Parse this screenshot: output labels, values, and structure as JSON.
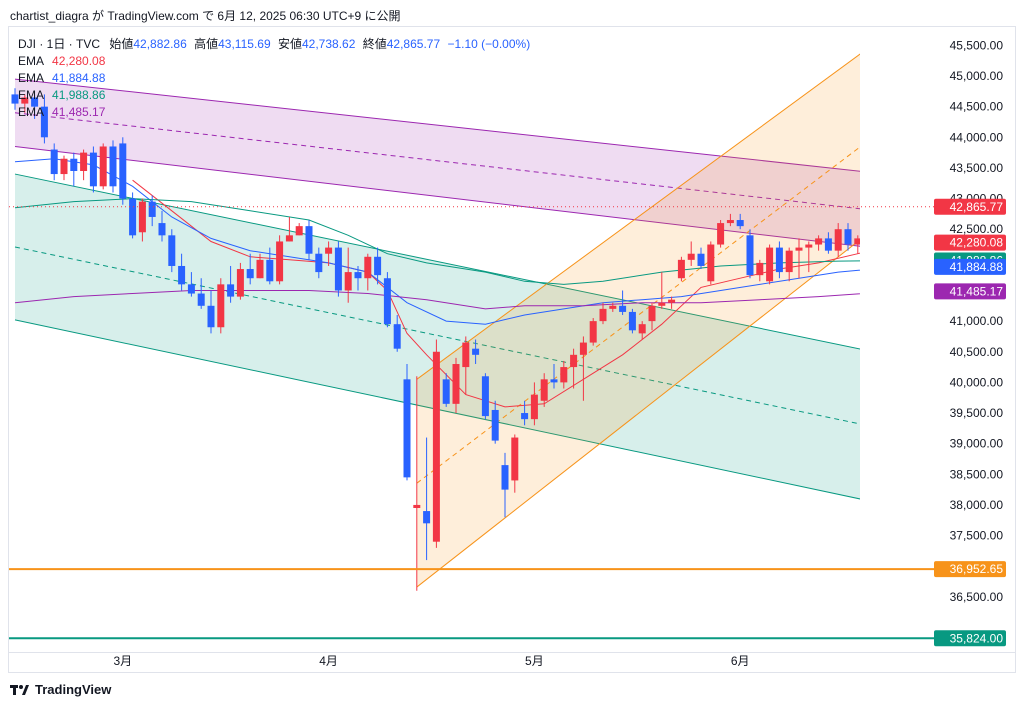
{
  "header": {
    "text": "chartist_diagra が TradingView.com で 6月 12, 2025 06:30 UTC+9 に公開"
  },
  "legend": {
    "symbol": "DJI · 1日 · TVC",
    "open_label": "始値",
    "open": "42,882.86",
    "high_label": "高値",
    "high": "43,115.69",
    "low_label": "安値",
    "low": "42,738.62",
    "close_label": "終値",
    "close": "42,865.77",
    "change": "−1.10 (−0.00%)",
    "emas": [
      {
        "name": "EMA",
        "value": "42,280.08",
        "color": "#f23645"
      },
      {
        "name": "EMA",
        "value": "41,884.88",
        "color": "#2962ff"
      },
      {
        "name": "EMA",
        "value": "41,988.86",
        "color": "#089981"
      },
      {
        "name": "EMA",
        "value": "41,485.17",
        "color": "#9c27b0"
      }
    ]
  },
  "footer": {
    "brand": "TradingView"
  },
  "chart_data": {
    "type": "candlestick",
    "symbol": "DJI",
    "interval": "1日",
    "y_axis": {
      "min": 35600,
      "max": 45800,
      "ticks": [
        36500,
        37000,
        37500,
        38000,
        38500,
        39000,
        39500,
        40000,
        40500,
        41000,
        41500,
        42000,
        42500,
        43000,
        43500,
        44000,
        44500,
        45000,
        45500
      ],
      "tick_labels": [
        "36,500.00",
        "37,000.00",
        "37,500.00",
        "38,000.00",
        "38,500.00",
        "39,000.00",
        "39,500.00",
        "40,000.00",
        "40,500.00",
        "41,000.00",
        "41,500.00",
        "42,000.00",
        "42,500.00",
        "43,000.00",
        "43,500.00",
        "44,000.00",
        "44,500.00",
        "45,000.00",
        "45,500.00"
      ]
    },
    "x_axis": {
      "labels": [
        {
          "text": "3月",
          "bar": 11
        },
        {
          "text": "4月",
          "bar": 32
        },
        {
          "text": "5月",
          "bar": 53
        },
        {
          "text": "6月",
          "bar": 74
        }
      ],
      "bar_count": 91
    },
    "price_tags": [
      {
        "value": 42865.77,
        "label": "42,865.77",
        "color": "#f23645",
        "line": "dotted"
      },
      {
        "value": 42280.08,
        "label": "42,280.08",
        "color": "#f23645"
      },
      {
        "value": 41988.86,
        "label": "41,988.86",
        "color": "#089981"
      },
      {
        "value": 41884.88,
        "label": "41,884.88",
        "color": "#2962ff"
      },
      {
        "value": 41485.17,
        "label": "41,485.17",
        "color": "#9c27b0"
      },
      {
        "value": 36952.65,
        "label": "36,952.65",
        "color": "#f7931a",
        "line": "solid"
      },
      {
        "value": 35824.0,
        "label": "35,824.00",
        "color": "#089981",
        "line": "solid"
      }
    ],
    "candles": [
      [
        44700,
        44800,
        44450,
        44550
      ],
      [
        44550,
        44700,
        44400,
        44650
      ],
      [
        44650,
        44700,
        44300,
        44500
      ],
      [
        44500,
        44700,
        43900,
        44000
      ],
      [
        43800,
        43900,
        43300,
        43400
      ],
      [
        43400,
        43700,
        43300,
        43650
      ],
      [
        43650,
        43750,
        43200,
        43450
      ],
      [
        43450,
        43800,
        43300,
        43750
      ],
      [
        43750,
        43850,
        43100,
        43200
      ],
      [
        43200,
        43900,
        43150,
        43850
      ],
      [
        43850,
        43950,
        43100,
        43200
      ],
      [
        43900,
        44000,
        42900,
        43000
      ],
      [
        43000,
        43100,
        42350,
        42400
      ],
      [
        42450,
        43000,
        42300,
        42950
      ],
      [
        42950,
        43050,
        42550,
        42700
      ],
      [
        42600,
        42800,
        42300,
        42400
      ],
      [
        42400,
        42500,
        41800,
        41900
      ],
      [
        41900,
        42100,
        41500,
        41600
      ],
      [
        41600,
        41800,
        41400,
        41450
      ],
      [
        41450,
        41700,
        41200,
        41250
      ],
      [
        41250,
        41500,
        40800,
        40900
      ],
      [
        40900,
        41700,
        40800,
        41600
      ],
      [
        41600,
        41900,
        41300,
        41400
      ],
      [
        41400,
        41950,
        41350,
        41850
      ],
      [
        41850,
        42100,
        41600,
        41700
      ],
      [
        41700,
        42100,
        41700,
        42000
      ],
      [
        42000,
        42200,
        41600,
        41650
      ],
      [
        41650,
        42400,
        41600,
        42300
      ],
      [
        42300,
        42700,
        42300,
        42400
      ],
      [
        42400,
        42600,
        42400,
        42550
      ],
      [
        42550,
        42650,
        42000,
        42100
      ],
      [
        42100,
        42200,
        41700,
        41800
      ],
      [
        42100,
        42300,
        41900,
        42200
      ],
      [
        42200,
        42300,
        41400,
        41500
      ],
      [
        41500,
        42200,
        41300,
        41800
      ],
      [
        41800,
        41900,
        41500,
        41700
      ],
      [
        41700,
        42100,
        41500,
        42050
      ],
      [
        42050,
        42200,
        41600,
        41750
      ],
      [
        41700,
        41800,
        40900,
        40950
      ],
      [
        40950,
        41100,
        40500,
        40550
      ],
      [
        40050,
        40300,
        38400,
        38450
      ],
      [
        37950,
        40100,
        36600,
        38000
      ],
      [
        37900,
        39100,
        37100,
        37700
      ],
      [
        37400,
        40700,
        37300,
        40500
      ],
      [
        40050,
        40150,
        39600,
        39650
      ],
      [
        39650,
        40400,
        39500,
        40300
      ],
      [
        40250,
        40750,
        39800,
        40650
      ],
      [
        40550,
        40700,
        40300,
        40450
      ],
      [
        40100,
        40150,
        39400,
        39450
      ],
      [
        39550,
        39700,
        39000,
        39050
      ],
      [
        38650,
        38850,
        37800,
        38250
      ],
      [
        38400,
        39150,
        38200,
        39100
      ],
      [
        39500,
        39700,
        39300,
        39400
      ],
      [
        39400,
        40000,
        39300,
        39800
      ],
      [
        39700,
        40150,
        39600,
        40050
      ],
      [
        40050,
        40300,
        39900,
        40000
      ],
      [
        40000,
        40350,
        39900,
        40250
      ],
      [
        40250,
        40550,
        39900,
        40450
      ],
      [
        40450,
        40750,
        39700,
        40650
      ],
      [
        40650,
        41050,
        40600,
        41000
      ],
      [
        41000,
        41300,
        40950,
        41200
      ],
      [
        41200,
        41300,
        41150,
        41250
      ],
      [
        41250,
        41500,
        41100,
        41150
      ],
      [
        41150,
        41200,
        40800,
        40850
      ],
      [
        40800,
        41000,
        40700,
        40950
      ],
      [
        41000,
        41300,
        40850,
        41250
      ],
      [
        41250,
        41800,
        41200,
        41300
      ],
      [
        41300,
        41400,
        41200,
        41350
      ],
      [
        41700,
        42050,
        41650,
        42000
      ],
      [
        42000,
        42300,
        41900,
        42100
      ],
      [
        42100,
        42200,
        41850,
        41900
      ],
      [
        41650,
        42300,
        41600,
        42250
      ],
      [
        42250,
        42650,
        42200,
        42600
      ],
      [
        42600,
        42750,
        42550,
        42650
      ],
      [
        42650,
        42750,
        42500,
        42550
      ],
      [
        42400,
        42500,
        41700,
        41750
      ],
      [
        41750,
        42000,
        41650,
        41950
      ],
      [
        41650,
        42250,
        41600,
        42200
      ],
      [
        42200,
        42300,
        41700,
        41800
      ],
      [
        41800,
        42200,
        41650,
        42150
      ],
      [
        42150,
        42350,
        41700,
        42200
      ],
      [
        42200,
        42300,
        41800,
        42250
      ],
      [
        42250,
        42400,
        42150,
        42350
      ],
      [
        42350,
        42450,
        42100,
        42150
      ],
      [
        42150,
        42600,
        42050,
        42500
      ],
      [
        42500,
        42600,
        42150,
        42250
      ],
      [
        42250,
        42400,
        42100,
        42350
      ],
      [
        42350,
        42700,
        42250,
        42650
      ],
      [
        42650,
        42950,
        42550,
        42750
      ],
      [
        42750,
        42900,
        42650,
        42800
      ],
      [
        42882.86,
        43115.69,
        42738.62,
        42865.77
      ]
    ],
    "ema_series": [
      {
        "name": "EMA",
        "color": "#f23645",
        "points": [
          [
            12,
            43300
          ],
          [
            16,
            42800
          ],
          [
            20,
            42300
          ],
          [
            24,
            42050
          ],
          [
            28,
            42000
          ],
          [
            32,
            41950
          ],
          [
            36,
            41800
          ],
          [
            38,
            41500
          ],
          [
            40,
            40800
          ],
          [
            42,
            40450
          ],
          [
            46,
            39800
          ],
          [
            50,
            39600
          ],
          [
            54,
            39650
          ],
          [
            58,
            40050
          ],
          [
            62,
            40450
          ],
          [
            66,
            40950
          ],
          [
            70,
            41550
          ],
          [
            74,
            41700
          ],
          [
            78,
            41850
          ],
          [
            82,
            41950
          ],
          [
            86,
            42100
          ],
          [
            90,
            42280
          ]
        ]
      },
      {
        "name": "EMA",
        "color": "#2962ff",
        "points": [
          [
            0,
            43600
          ],
          [
            4,
            43650
          ],
          [
            8,
            43550
          ],
          [
            12,
            43200
          ],
          [
            16,
            42700
          ],
          [
            20,
            42350
          ],
          [
            24,
            42150
          ],
          [
            28,
            42050
          ],
          [
            32,
            41950
          ],
          [
            36,
            41800
          ],
          [
            40,
            41300
          ],
          [
            44,
            41000
          ],
          [
            48,
            40950
          ],
          [
            52,
            41100
          ],
          [
            56,
            41200
          ],
          [
            60,
            41300
          ],
          [
            64,
            41350
          ],
          [
            68,
            41400
          ],
          [
            72,
            41500
          ],
          [
            76,
            41600
          ],
          [
            80,
            41700
          ],
          [
            84,
            41800
          ],
          [
            90,
            41885
          ]
        ]
      },
      {
        "name": "EMA",
        "color": "#089981",
        "points": [
          [
            0,
            42850
          ],
          [
            6,
            42950
          ],
          [
            12,
            43000
          ],
          [
            18,
            42950
          ],
          [
            24,
            42800
          ],
          [
            30,
            42650
          ],
          [
            34,
            42400
          ],
          [
            38,
            42100
          ],
          [
            42,
            41950
          ],
          [
            48,
            41800
          ],
          [
            52,
            41650
          ],
          [
            56,
            41600
          ],
          [
            60,
            41650
          ],
          [
            66,
            41800
          ],
          [
            72,
            41900
          ],
          [
            78,
            41950
          ],
          [
            84,
            41980
          ],
          [
            90,
            41990
          ]
        ]
      },
      {
        "name": "EMA",
        "color": "#9c27b0",
        "points": [
          [
            0,
            41300
          ],
          [
            6,
            41400
          ],
          [
            12,
            41450
          ],
          [
            18,
            41500
          ],
          [
            24,
            41500
          ],
          [
            30,
            41500
          ],
          [
            36,
            41450
          ],
          [
            42,
            41350
          ],
          [
            48,
            41200
          ],
          [
            52,
            41250
          ],
          [
            58,
            41250
          ],
          [
            64,
            41300
          ],
          [
            70,
            41300
          ],
          [
            76,
            41350
          ],
          [
            82,
            41400
          ],
          [
            90,
            41490
          ]
        ]
      }
    ],
    "channels": [
      {
        "name": "purple-channel",
        "color": "#9c27b0",
        "fill": "#9c27b0",
        "top": [
          [
            0,
            44950
          ],
          [
            90,
            43380
          ]
        ],
        "bottom": [
          [
            0,
            43850
          ],
          [
            90,
            42150
          ]
        ],
        "mid_dashed": true
      },
      {
        "name": "teal-channel",
        "color": "#089981",
        "fill": "#089981",
        "top": [
          [
            0,
            43400
          ],
          [
            90,
            40420
          ]
        ],
        "bottom": [
          [
            0,
            41020
          ],
          [
            90,
            37970
          ]
        ],
        "mid_dashed": true
      },
      {
        "name": "orange-channel",
        "color": "#f7931a",
        "fill": "#f7931a",
        "top": [
          [
            41,
            40050
          ],
          [
            90,
            45800
          ]
        ],
        "bottom": [
          [
            41,
            36660
          ],
          [
            90,
            42800
          ]
        ],
        "mid_dashed": true
      }
    ]
  }
}
